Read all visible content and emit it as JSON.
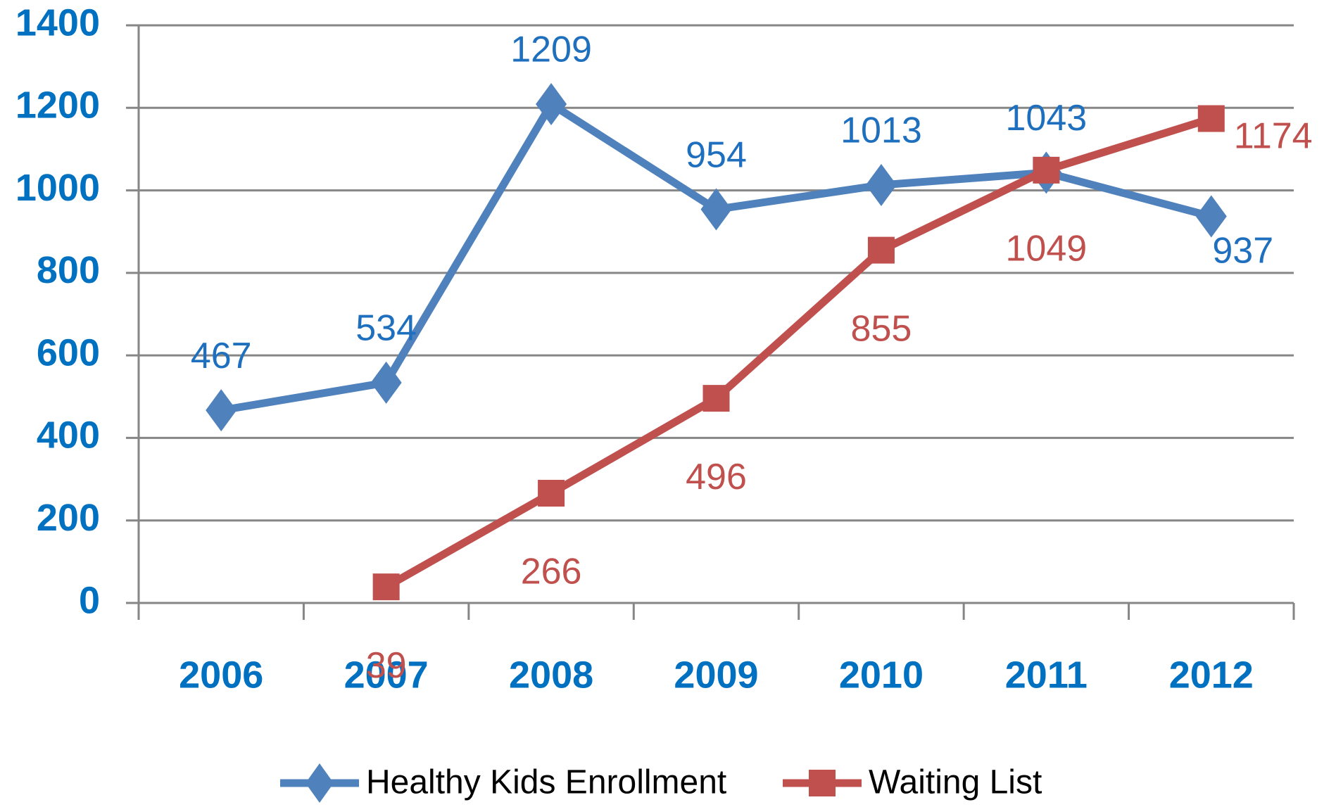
{
  "chart_data": {
    "type": "line",
    "categories": [
      "2006",
      "2007",
      "2008",
      "2009",
      "2010",
      "2011",
      "2012"
    ],
    "series": [
      {
        "name": "Healthy Kids Enrollment",
        "color": "#4f81bd",
        "values": [
          467,
          534,
          1209,
          954,
          1013,
          1043,
          937
        ]
      },
      {
        "name": "Waiting List",
        "color": "#c0504d",
        "values": [
          null,
          39,
          266,
          496,
          855,
          1049,
          1174
        ]
      }
    ],
    "ylim": [
      0,
      1400
    ],
    "yticks": [
      0,
      200,
      400,
      600,
      800,
      1000,
      1200,
      1400
    ],
    "grid": true,
    "legend": "bottom"
  }
}
